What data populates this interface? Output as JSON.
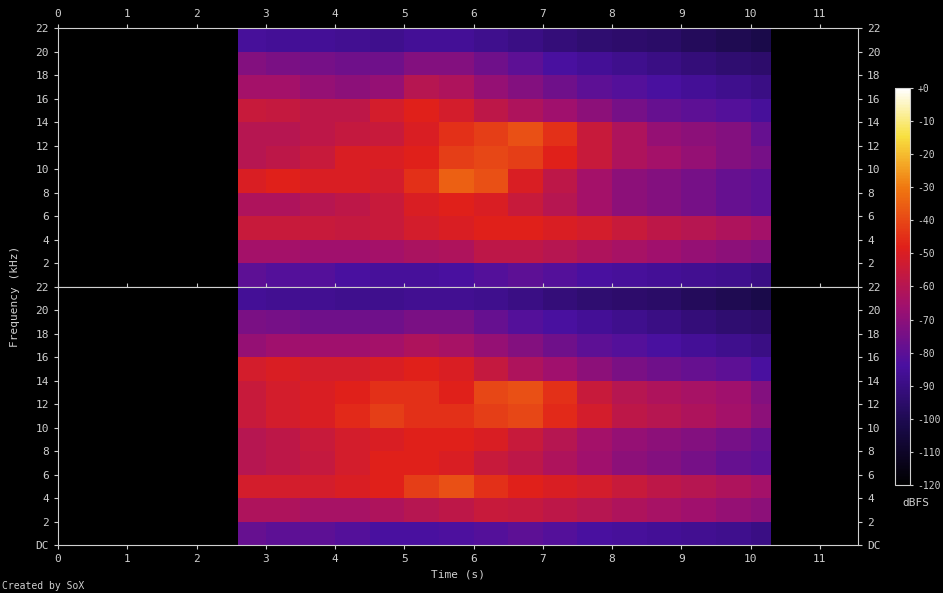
{
  "chart_data": [
    {
      "type": "heatmap",
      "xlim": [
        0,
        11.55
      ],
      "ylim": [
        0,
        22
      ],
      "xticks": [
        0,
        1,
        2,
        3,
        4,
        5,
        6,
        7,
        8,
        9,
        10,
        11
      ],
      "yticks": [
        2,
        4,
        6,
        8,
        10,
        12,
        14,
        16,
        18,
        20,
        22
      ],
      "x": [
        2.6,
        3.0,
        3.5,
        4.0,
        4.5,
        5.0,
        5.5,
        6.0,
        6.5,
        7.0,
        7.5,
        8.0,
        8.5,
        9.0,
        9.5,
        10.0,
        10.3
      ],
      "y": [
        0,
        2,
        4,
        6,
        8,
        10,
        12,
        14,
        16,
        18,
        20,
        22
      ],
      "values": [
        [
          -80,
          -82,
          -82,
          -84,
          -85,
          -85,
          -84,
          -82,
          -80,
          -82,
          -84,
          -85,
          -86,
          -87,
          -88,
          -90
        ],
        [
          -65,
          -65,
          -66,
          -66,
          -65,
          -63,
          -62,
          -58,
          -58,
          -60,
          -62,
          -64,
          -66,
          -68,
          -70,
          -72
        ],
        [
          -55,
          -55,
          -55,
          -56,
          -55,
          -52,
          -50,
          -48,
          -48,
          -50,
          -52,
          -55,
          -58,
          -60,
          -62,
          -65
        ],
        [
          -62,
          -62,
          -60,
          -58,
          -55,
          -50,
          -48,
          -50,
          -55,
          -60,
          -65,
          -70,
          -72,
          -75,
          -78,
          -80
        ],
        [
          -50,
          -48,
          -50,
          -50,
          -52,
          -45,
          -35,
          -38,
          -50,
          -58,
          -65,
          -70,
          -72,
          -75,
          -78,
          -80
        ],
        [
          -60,
          -58,
          -55,
          -50,
          -50,
          -48,
          -42,
          -40,
          -42,
          -48,
          -55,
          -62,
          -65,
          -68,
          -72,
          -75
        ],
        [
          -60,
          -60,
          -58,
          -56,
          -55,
          -50,
          -45,
          -42,
          -38,
          -45,
          -55,
          -62,
          -68,
          -70,
          -72,
          -78
        ],
        [
          -55,
          -56,
          -58,
          -58,
          -52,
          -48,
          -52,
          -58,
          -62,
          -66,
          -70,
          -75,
          -78,
          -80,
          -82,
          -85
        ],
        [
          -65,
          -65,
          -68,
          -70,
          -68,
          -60,
          -62,
          -68,
          -72,
          -76,
          -80,
          -82,
          -84,
          -86,
          -88,
          -90
        ],
        [
          -72,
          -74,
          -75,
          -76,
          -76,
          -72,
          -72,
          -76,
          -80,
          -84,
          -86,
          -88,
          -90,
          -92,
          -94,
          -95
        ],
        [
          -85,
          -86,
          -86,
          -87,
          -88,
          -86,
          -86,
          -88,
          -90,
          -92,
          -94,
          -95,
          -96,
          -98,
          -100,
          -102
        ]
      ],
      "colorbar": {
        "range": [
          -120,
          0
        ],
        "ticks": [
          {
            "value": 0,
            "label": "+0"
          },
          -10,
          -20,
          -30,
          -40,
          -50,
          -60,
          -70,
          -80,
          -90,
          -100,
          -110,
          -120
        ],
        "label": "dBFS"
      }
    },
    {
      "type": "heatmap",
      "x_label": "Time (s)",
      "xlim": [
        0,
        11.55
      ],
      "ylim": [
        0,
        22
      ],
      "xticks": [
        0,
        1,
        2,
        3,
        4,
        5,
        6,
        7,
        8,
        9,
        10,
        11
      ],
      "yticks": [
        {
          "value": 0,
          "label": "DC"
        },
        2,
        4,
        6,
        8,
        10,
        12,
        14,
        16,
        18,
        20,
        22
      ],
      "x": [
        2.6,
        3.0,
        3.5,
        4.0,
        4.5,
        5.0,
        5.5,
        6.0,
        6.5,
        7.0,
        7.5,
        8.0,
        8.5,
        9.0,
        9.5,
        10.0,
        10.3
      ],
      "y": [
        0,
        2,
        4,
        6,
        8,
        10,
        12,
        14,
        16,
        18,
        20,
        22
      ],
      "values": [
        [
          -78,
          -80,
          -80,
          -82,
          -84,
          -84,
          -83,
          -82,
          -80,
          -82,
          -84,
          -85,
          -86,
          -87,
          -88,
          -90
        ],
        [
          -62,
          -62,
          -64,
          -64,
          -62,
          -60,
          -58,
          -55,
          -56,
          -58,
          -60,
          -62,
          -64,
          -66,
          -68,
          -70
        ],
        [
          -52,
          -52,
          -52,
          -50,
          -48,
          -42,
          -38,
          -45,
          -48,
          -50,
          -52,
          -55,
          -58,
          -60,
          -62,
          -65
        ],
        [
          -60,
          -58,
          -56,
          -52,
          -48,
          -48,
          -50,
          -55,
          -58,
          -62,
          -66,
          -70,
          -72,
          -75,
          -78,
          -80
        ],
        [
          -60,
          -58,
          -55,
          -52,
          -50,
          -48,
          -48,
          -50,
          -55,
          -60,
          -65,
          -68,
          -70,
          -72,
          -75,
          -78
        ],
        [
          -55,
          -52,
          -50,
          -46,
          -42,
          -45,
          -45,
          -42,
          -40,
          -46,
          -52,
          -58,
          -60,
          -62,
          -65,
          -70
        ],
        [
          -55,
          -52,
          -50,
          -48,
          -45,
          -45,
          -48,
          -40,
          -38,
          -45,
          -55,
          -60,
          -62,
          -64,
          -66,
          -72
        ],
        [
          -52,
          -50,
          -52,
          -52,
          -50,
          -48,
          -50,
          -56,
          -62,
          -66,
          -70,
          -74,
          -76,
          -78,
          -80,
          -84
        ],
        [
          -68,
          -66,
          -66,
          -66,
          -65,
          -62,
          -64,
          -68,
          -72,
          -76,
          -80,
          -82,
          -84,
          -86,
          -88,
          -90
        ],
        [
          -74,
          -75,
          -76,
          -76,
          -76,
          -74,
          -74,
          -78,
          -82,
          -84,
          -86,
          -88,
          -90,
          -92,
          -94,
          -95
        ],
        [
          -86,
          -87,
          -87,
          -88,
          -88,
          -87,
          -87,
          -88,
          -90,
          -92,
          -94,
          -95,
          -96,
          -98,
          -100,
          -102
        ]
      ]
    }
  ],
  "y_label": "Frequency (kHz)",
  "footer": "Created by SoX"
}
